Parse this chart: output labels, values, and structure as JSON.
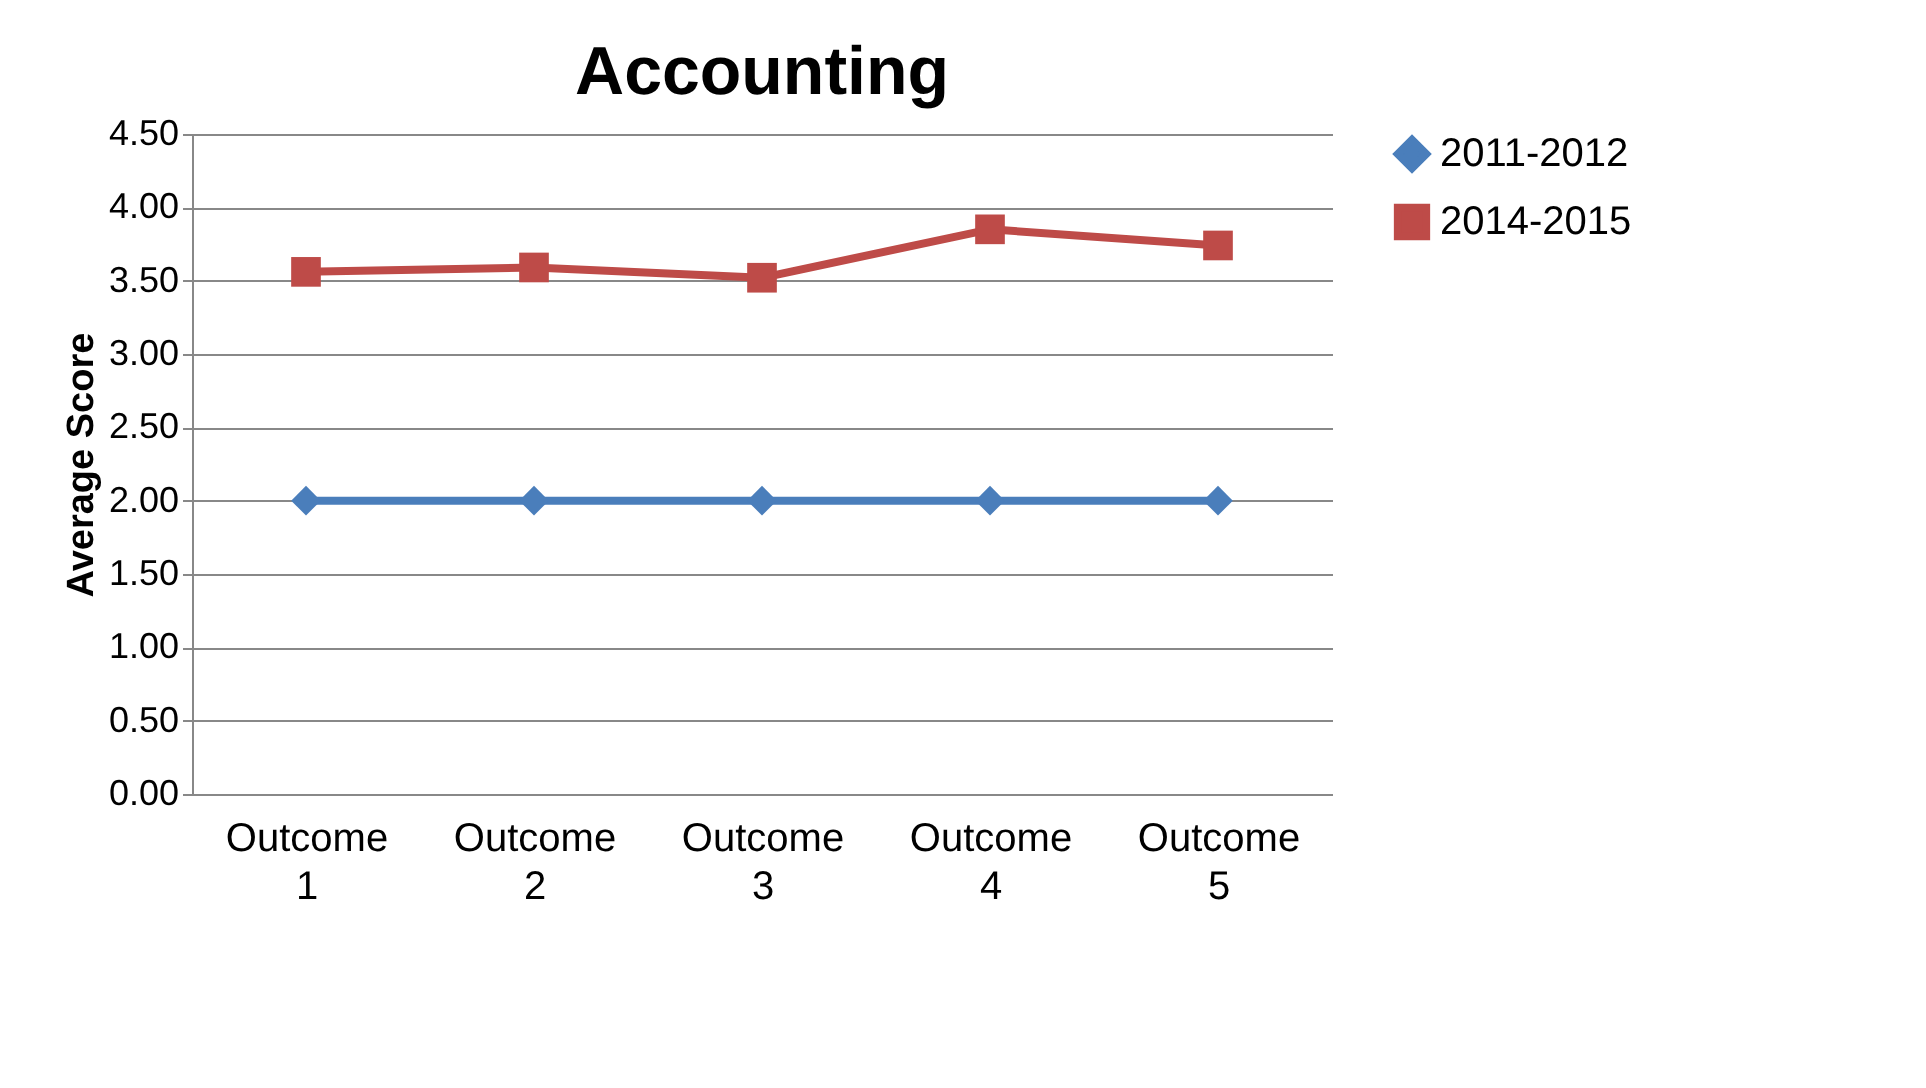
{
  "chart_data": {
    "type": "line",
    "title": "Accounting",
    "ylabel": "Average Score",
    "categories": [
      "Outcome 1",
      "Outcome 2",
      "Outcome 3",
      "Outcome 4",
      "Outcome 5"
    ],
    "series": [
      {
        "name": "2011-2012",
        "color": "#4a7ebb",
        "marker": "diamond",
        "values": [
          2.0,
          2.0,
          2.0,
          2.0,
          2.0
        ]
      },
      {
        "name": "2014-2015",
        "color": "#be4b48",
        "marker": "square",
        "values": [
          3.56,
          3.59,
          3.52,
          3.85,
          3.74
        ]
      }
    ],
    "ylim": [
      0,
      4.5
    ],
    "yticks": [
      {
        "value": 0,
        "label": "0.00"
      },
      {
        "value": 0.5,
        "label": "0.50"
      },
      {
        "value": 1,
        "label": "1.00"
      },
      {
        "value": 1.5,
        "label": "1.50"
      },
      {
        "value": 2,
        "label": "2.00"
      },
      {
        "value": 2.5,
        "label": "2.50"
      },
      {
        "value": 3,
        "label": "3.00"
      },
      {
        "value": 3.5,
        "label": "3.50"
      },
      {
        "value": 4,
        "label": "4.00"
      },
      {
        "value": 4.5,
        "label": "4.50"
      }
    ],
    "grid": "y",
    "legend": "right",
    "line_style": "solid"
  }
}
